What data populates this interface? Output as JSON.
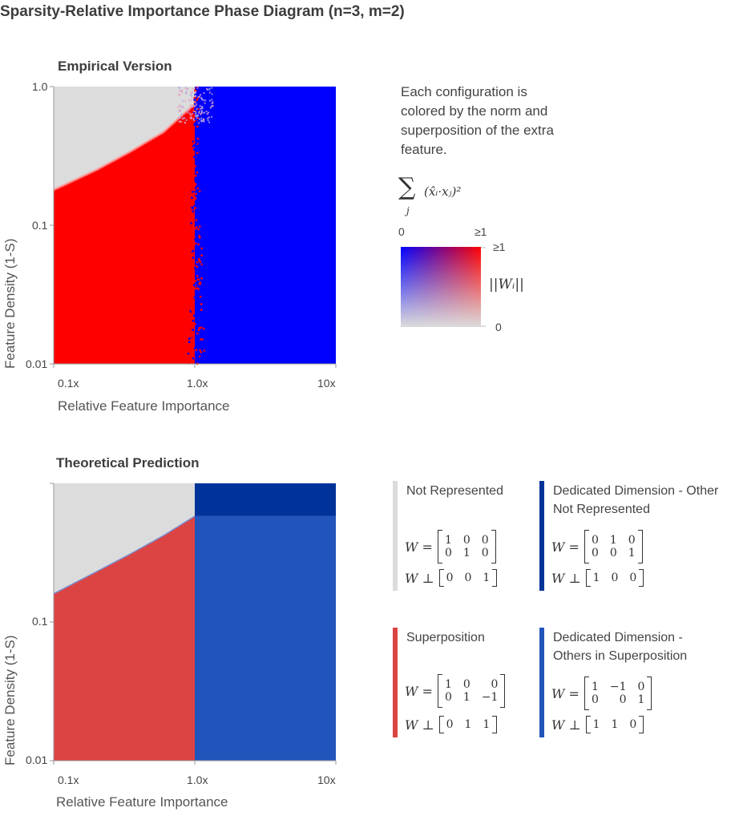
{
  "title": "Sparsity-Relative Importance Phase Diagram (n=3, m=2)",
  "colors": {
    "not_represented": "#dcdcdc",
    "superposition": "#dc4444",
    "dedicated_other_not": "#003399",
    "dedicated_others_super": "#2255bb",
    "empirical_red": "#ff0000",
    "empirical_blue": "#0000ff"
  },
  "empirical": {
    "subtitle": "Empirical Version",
    "description": "Each configuration is colored by the norm and superposition of the extra feature.",
    "colorbar": {
      "sum_symbol": "∑",
      "sum_index": "j",
      "sum_term": "(x̂ᵢ·xⱼ)²",
      "x_min": "0",
      "x_max": "≥1",
      "y_max": "≥1",
      "y_min": "0",
      "y_label": "||Wᵢ||"
    }
  },
  "theoretical": {
    "subtitle": "Theoretical Prediction"
  },
  "regions": [
    {
      "title": "Not Represented",
      "color": "#dcdcdc",
      "w_rows": [
        [
          "1",
          "0",
          "0"
        ],
        [
          "0",
          "1",
          "0"
        ]
      ],
      "perp": [
        "0",
        "0",
        "1"
      ]
    },
    {
      "title": "Dedicated Dimension - Other Not Represented",
      "color": "#003399",
      "w_rows": [
        [
          "0",
          "1",
          "0"
        ],
        [
          "0",
          "0",
          "1"
        ]
      ],
      "perp": [
        "1",
        "0",
        "0"
      ]
    },
    {
      "title": "Superposition",
      "color": "#dc4444",
      "w_rows": [
        [
          "1",
          "0",
          "0"
        ],
        [
          "0",
          "1",
          "−1"
        ]
      ],
      "perp": [
        "0",
        "1",
        "1"
      ]
    },
    {
      "title": "Dedicated Dimension - Others in Superposition",
      "color": "#2255bb",
      "w_rows": [
        [
          "1",
          "−1",
          "0"
        ],
        [
          "0",
          "0",
          "1"
        ]
      ],
      "perp": [
        "1",
        "1",
        "0"
      ]
    }
  ],
  "math_labels": {
    "w": "W =",
    "w_perp": "W ⊥"
  },
  "chart_data": [
    {
      "type": "heatmap",
      "title": "Empirical Version",
      "xlabel": "Relative Feature Importance",
      "ylabel": "Feature Density (1-S)",
      "xscale": "log",
      "yscale": "log",
      "xlim": [
        0.1,
        10
      ],
      "ylim": [
        0.01,
        1
      ],
      "xticks": [
        "0.1x",
        "1.0x",
        "10x"
      ],
      "yticks": [
        "1.0",
        "0.1",
        "0.01"
      ],
      "boundary_x": 1.0,
      "superposition_boundary": {
        "x": [
          0.1,
          0.2,
          0.35,
          0.6,
          1.0
        ],
        "y": [
          0.18,
          0.25,
          0.34,
          0.47,
          0.75
        ]
      }
    },
    {
      "type": "heatmap",
      "title": "Theoretical Prediction",
      "xlabel": "Relative Feature Importance",
      "ylabel": "Feature Density (1-S)",
      "xscale": "log",
      "yscale": "log",
      "xlim": [
        0.1,
        10
      ],
      "ylim": [
        0.01,
        1
      ],
      "xticks": [
        "0.1x",
        "1.0x",
        "10x"
      ],
      "yticks": [
        "0.1",
        "0.01"
      ],
      "boundary_x": 1.0,
      "dedicated_split_y": 0.58,
      "superposition_boundary": {
        "x": [
          0.1,
          0.2,
          0.35,
          0.6,
          1.0
        ],
        "y": [
          0.16,
          0.23,
          0.31,
          0.42,
          0.58
        ]
      }
    }
  ]
}
